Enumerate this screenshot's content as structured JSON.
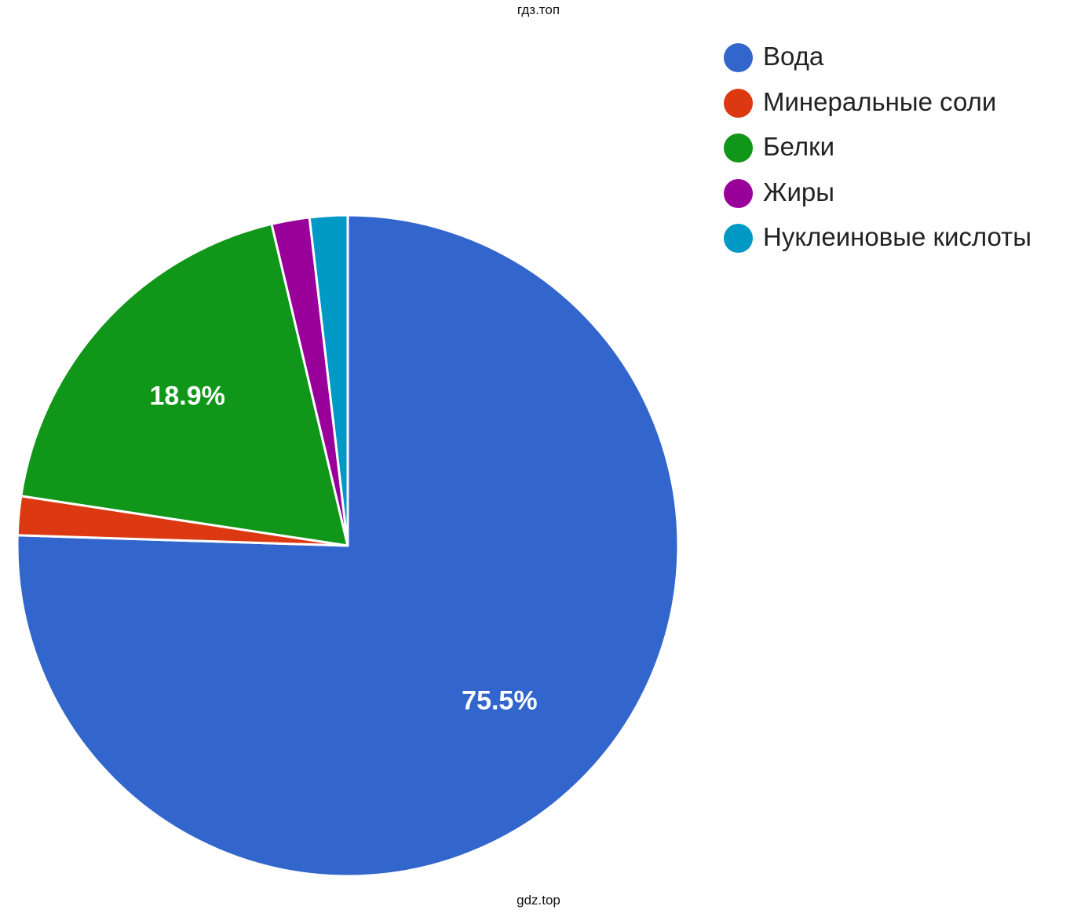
{
  "watermark_top": "гдз.топ",
  "watermark_bottom": "gdz.top",
  "chart_data": {
    "type": "pie",
    "title": "",
    "slices": [
      {
        "label": "Вода",
        "value": 75.5,
        "color": "#3366cc",
        "data_label": "75.5%"
      },
      {
        "label": "Минеральные соли",
        "value": 1.9,
        "color": "#dc3912",
        "data_label": ""
      },
      {
        "label": "Белки",
        "value": 18.9,
        "color": "#109618",
        "data_label": "18.9%"
      },
      {
        "label": "Жиры",
        "value": 1.85,
        "color": "#990099",
        "data_label": ""
      },
      {
        "label": "Нуклеиновые кислоты",
        "value": 1.85,
        "color": "#0099c6",
        "data_label": ""
      }
    ],
    "legend_position": "top-right",
    "start_angle": "12 o'clock, clockwise"
  }
}
